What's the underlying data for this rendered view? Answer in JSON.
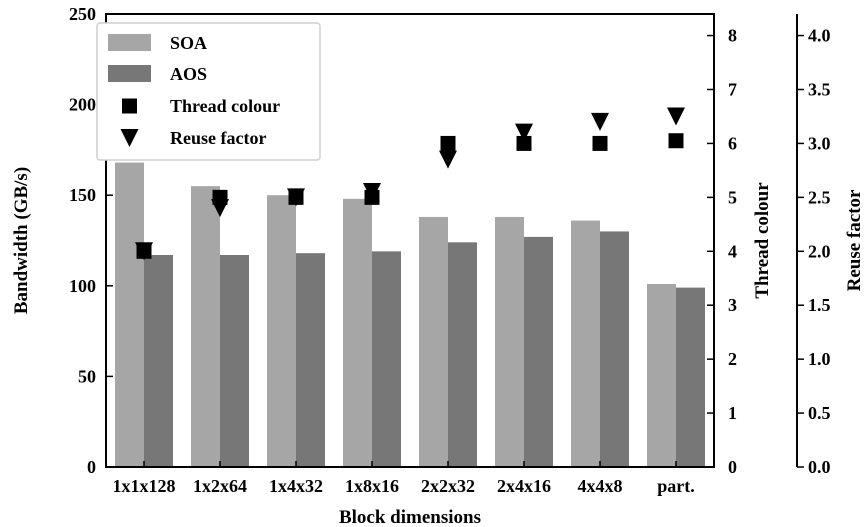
{
  "chart_data": {
    "type": "bar",
    "xlabel": "Block dimensions",
    "ylabel": "Bandwidth (GB/s)",
    "y2label": "Thread colour",
    "y3label": "Reuse factor",
    "categories": [
      "1x1x128",
      "1x2x64",
      "1x4x32",
      "1x8x16",
      "2x2x32",
      "2x4x16",
      "4x4x8",
      "part."
    ],
    "ylim": [
      0,
      250
    ],
    "yticks": [
      "0",
      "50",
      "100",
      "150",
      "200",
      "250"
    ],
    "y2lim": [
      0,
      8.4
    ],
    "y2ticks": [
      "0",
      "1",
      "2",
      "3",
      "4",
      "5",
      "6",
      "7",
      "8"
    ],
    "y3lim": [
      0,
      4.2
    ],
    "y3ticks": [
      "0.0",
      "0.5",
      "1.0",
      "1.5",
      "2.0",
      "2.5",
      "3.0",
      "3.5",
      "4.0"
    ],
    "series": [
      {
        "name": "SOA",
        "kind": "bar",
        "color": "#a6a6a6",
        "values": [
          168,
          155,
          150,
          148,
          138,
          138,
          136,
          101
        ]
      },
      {
        "name": "AOS",
        "kind": "bar",
        "color": "#777777",
        "values": [
          117,
          117,
          118,
          119,
          124,
          127,
          130,
          99
        ]
      },
      {
        "name": "Thread colour",
        "kind": "marker-square",
        "axis": "y2",
        "color": "#000000",
        "values": [
          4,
          5,
          5,
          5,
          6,
          6,
          6,
          6.05
        ]
      },
      {
        "name": "Reuse factor",
        "kind": "marker-triangle-down",
        "axis": "y3",
        "color": "#000000",
        "values": [
          2.0,
          2.4,
          2.5,
          2.55,
          2.85,
          3.1,
          3.2,
          3.25
        ]
      }
    ],
    "legend": {
      "position": "top-left"
    },
    "grid": false
  }
}
